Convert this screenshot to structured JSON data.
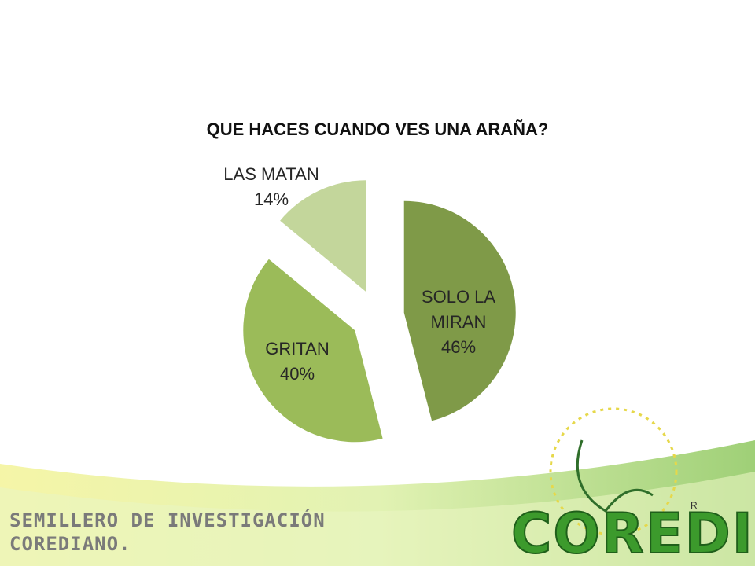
{
  "chart_data": {
    "type": "pie",
    "title": "QUE HACES CUANDO VES UNA ARAÑA?",
    "categories": [
      "SOLO LA MIRAN",
      "GRITAN",
      "LAS MATAN"
    ],
    "values": [
      46,
      40,
      14
    ],
    "value_labels": [
      "46%",
      "40%",
      "14%"
    ],
    "colors": [
      "#7f9a48",
      "#9bbb59",
      "#c3d69b"
    ]
  },
  "footer": {
    "line1": "SEMILLERO DE INVESTIGACIÓN",
    "line2": "COREDIANO.",
    "logo": "COREDI",
    "logo_mark": "R"
  }
}
